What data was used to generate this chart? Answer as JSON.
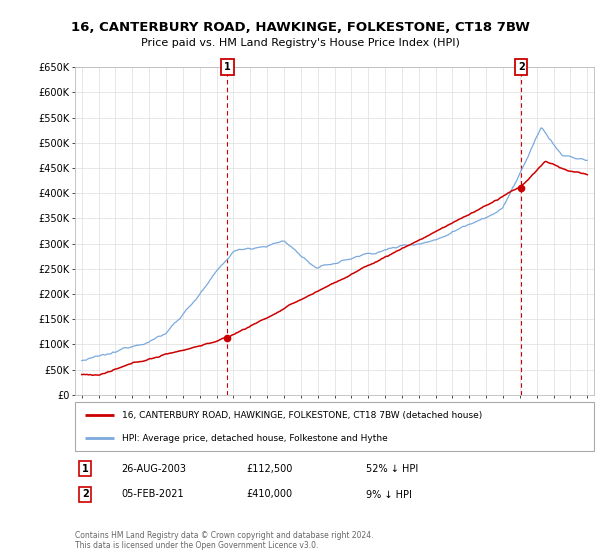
{
  "title": "16, CANTERBURY ROAD, HAWKINGE, FOLKESTONE, CT18 7BW",
  "subtitle": "Price paid vs. HM Land Registry's House Price Index (HPI)",
  "ylabel_ticks": [
    "£0",
    "£50K",
    "£100K",
    "£150K",
    "£200K",
    "£250K",
    "£300K",
    "£350K",
    "£400K",
    "£450K",
    "£500K",
    "£550K",
    "£600K",
    "£650K"
  ],
  "ytick_values": [
    0,
    50000,
    100000,
    150000,
    200000,
    250000,
    300000,
    350000,
    400000,
    450000,
    500000,
    550000,
    600000,
    650000
  ],
  "point1_year": 2003.65,
  "point1_price": 112500,
  "point1_date": "26-AUG-2003",
  "point1_hpi_pct": "52% ↓ HPI",
  "point2_year": 2021.08,
  "point2_price": 410000,
  "point2_date": "05-FEB-2021",
  "point2_hpi_pct": "9% ↓ HPI",
  "legend_line1": "16, CANTERBURY ROAD, HAWKINGE, FOLKESTONE, CT18 7BW (detached house)",
  "legend_line2": "HPI: Average price, detached house, Folkestone and Hythe",
  "footer": "Contains HM Land Registry data © Crown copyright and database right 2024.\nThis data is licensed under the Open Government Licence v3.0.",
  "hpi_color": "#7aaadd",
  "price_color": "#cc0000",
  "vline_color": "#cc0000",
  "background_color": "#ffffff",
  "grid_color": "#dddddd",
  "figwidth": 6.0,
  "figheight": 5.6,
  "dpi": 100
}
